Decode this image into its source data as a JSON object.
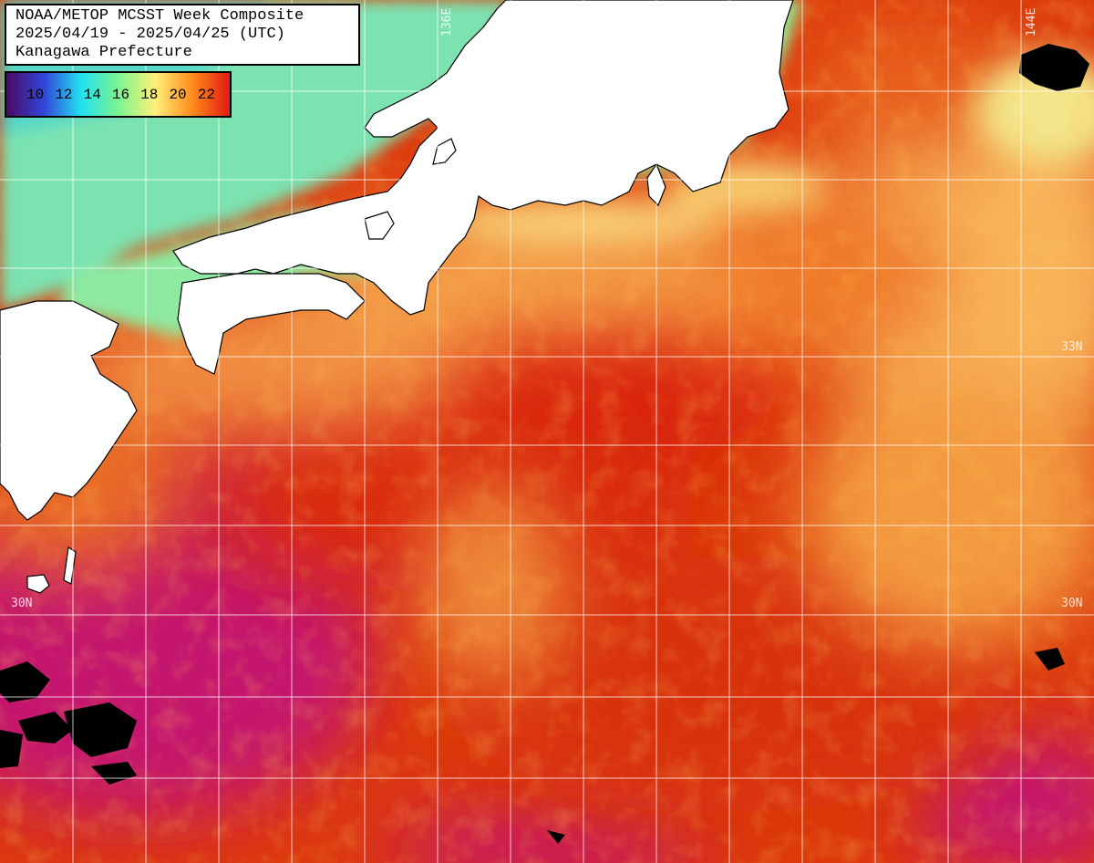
{
  "title_lines": [
    "NOAA/METOP MCSST Week Composite",
    "2025/04/19 - 2025/04/25 (UTC)",
    "Kanagawa Prefecture"
  ],
  "legend": {
    "ticks": [
      "10",
      "12",
      "14",
      "16",
      "18",
      "20",
      "22"
    ],
    "gradient_colors": [
      "#4b0a63",
      "#3244d8",
      "#22e0f0",
      "#7af590",
      "#fff07a",
      "#ff8a1c",
      "#e21a12"
    ]
  },
  "grid_labels": {
    "lon_136": "136E",
    "lon_144": "144E",
    "lat_33_right": "33N",
    "lat_30_left": "30N",
    "lat_30_right": "30N"
  },
  "colors": {
    "land": "#ffffff",
    "cloud_mask": "#000000",
    "warm_sea": "#dc3a0c",
    "very_warm_sea": "#c80f6a",
    "cool_coastal": "#7be8a4",
    "grid": "#ffffff"
  }
}
